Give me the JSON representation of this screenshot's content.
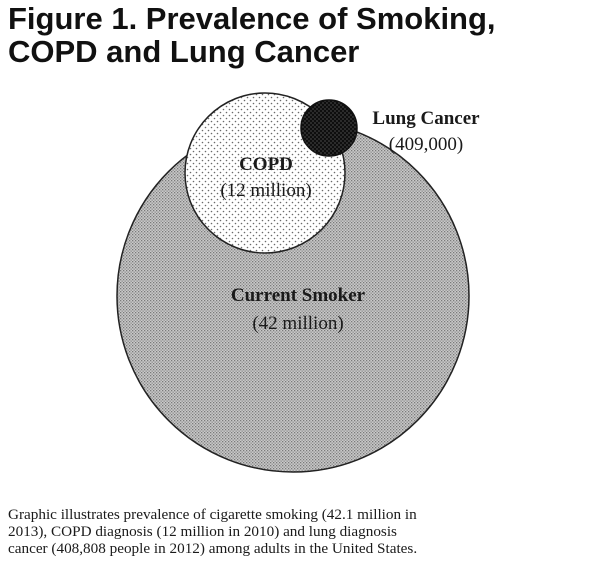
{
  "figure": {
    "title_line1": "Figure 1. Prevalence of Smoking,",
    "title_line2": "COPD and Lung Cancer"
  },
  "groups": [
    {
      "key": "smoker",
      "name": "Current Smoker",
      "value_label": "(42 million)",
      "value": 42000000
    },
    {
      "key": "copd",
      "name": "COPD",
      "value_label": "(12 million)",
      "value": 12000000
    },
    {
      "key": "lung_cancer",
      "name": "Lung Cancer",
      "value_label": "(409,000)",
      "value": 409000
    }
  ],
  "caption": {
    "line1": "Graphic illustrates prevalence of cigarette smoking (42.1 million in",
    "line2": "2013), COPD diagnosis (12 million in 2010) and lung diagnosis",
    "line3": "cancer (408,808 people in 2012) among adults in the United States."
  },
  "colors": {
    "smoker_fill": "#bdbdbd",
    "copd_fill": "#f4f4f4",
    "lung_cancer_fill": "#111111",
    "outline": "#222222"
  }
}
